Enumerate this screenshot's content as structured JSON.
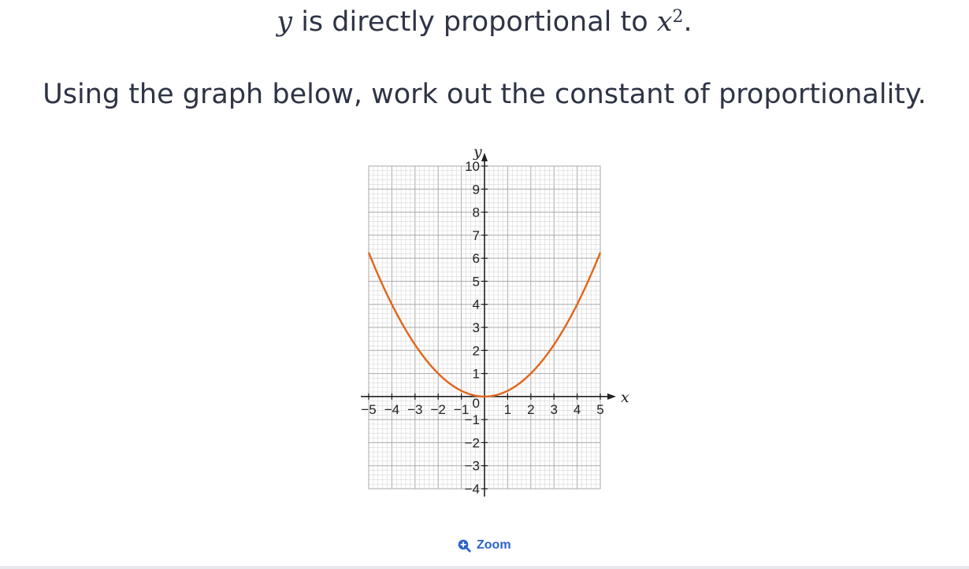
{
  "question": {
    "line1_var": "y",
    "line1_text": " is directly proportional to ",
    "line1_var2": "x",
    "line1_exp": "2",
    "line1_end": ".",
    "line2": "Using the graph below, work out the constant of proportionality."
  },
  "graph": {
    "x_axis_var": "x",
    "y_axis_var": "y",
    "x_ticks": [
      "−5",
      "−4",
      "−3",
      "−2",
      "−1",
      "1",
      "2",
      "3",
      "4",
      "5"
    ],
    "y_ticks": [
      "10",
      "9",
      "8",
      "7",
      "6",
      "5",
      "4",
      "3",
      "2",
      "1",
      "−1",
      "−2",
      "−3",
      "−4"
    ],
    "origin_label": "0",
    "curve_color": "#e0651a",
    "grid_color": "#bdbdbd"
  },
  "chart_data": {
    "type": "line",
    "title": "",
    "xlabel": "x",
    "ylabel": "y",
    "xlim": [
      -5,
      5
    ],
    "ylim": [
      -4,
      10
    ],
    "grid": true,
    "series": [
      {
        "x": [
          -5,
          -4.5,
          -4,
          -3.5,
          -3,
          -2.5,
          -2,
          -1.5,
          -1,
          -0.5,
          0,
          0.5,
          1,
          1.5,
          2,
          2.5,
          3,
          3.5,
          4,
          4.5,
          5
        ],
        "y": [
          6.25,
          5.0625,
          4,
          3.0625,
          2.25,
          1.5625,
          1,
          0.5625,
          0.25,
          0.0625,
          0,
          0.0625,
          0.25,
          0.5625,
          1,
          1.5625,
          2.25,
          3.0625,
          4,
          5.0625,
          6.25
        ]
      }
    ]
  },
  "zoom": {
    "label": "Zoom",
    "icon": "zoom-in-icon"
  }
}
